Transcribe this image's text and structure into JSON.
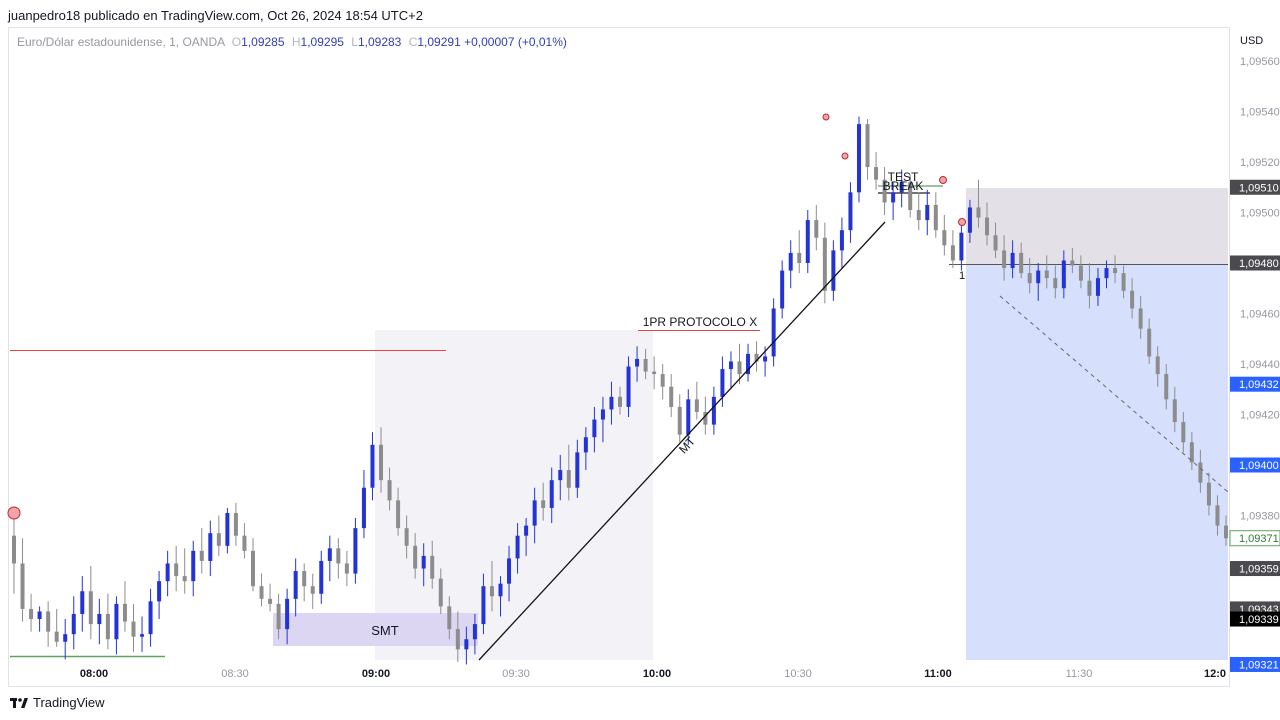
{
  "header": {
    "publisher_line": "juanpedro18 publicado en TradingView.com, Oct 26, 2024 18:54 UTC+2"
  },
  "legend": {
    "symbol": "Euro/Dólar estadounidense, 1, OANDA",
    "o_label": "O",
    "o_value": "1,09285",
    "h_label": "H",
    "h_value": "1,09295",
    "l_label": "L",
    "l_value": "1,09283",
    "c_label": "C",
    "c_value": "1,09291",
    "change": "+0,00007 (+0,01%)"
  },
  "axis": {
    "currency": "USD"
  },
  "footer": {
    "brand": "TradingView"
  },
  "colors": {
    "bull": "#2433d6",
    "bear": "#8c8c8c",
    "red_line": "#e04646",
    "green_line": "#5fa15f",
    "zone_gray": "#f3f3f7",
    "zone_purple": "#ddd6f3",
    "zone_blue": "#d6e0fc",
    "zone_dark": "#e3e1e7",
    "axis_text": "#9598a1"
  },
  "chart_data": {
    "type": "candlestick",
    "symbol": "EURUSD",
    "interval": "1",
    "ylim": [
      1.0932,
      1.0957
    ],
    "y_ticks": [
      "1,09560",
      "1,09540",
      "1,09520",
      "1,09500",
      "1,09460",
      "1,09440",
      "1,09420",
      "1,09380"
    ],
    "x_ticks": [
      "08:00",
      "08:30",
      "09:00",
      "09:30",
      "10:00",
      "10:30",
      "11:00",
      "11:30",
      "12:0"
    ],
    "x_ticks_bold": [
      "08:00",
      "09:00",
      "10:00",
      "11:00",
      "12:0"
    ],
    "price_labels": [
      {
        "text": "1,09510",
        "style": "dark"
      },
      {
        "text": "1,09480",
        "style": "dark"
      },
      {
        "text": "1,09432",
        "style": "blue"
      },
      {
        "text": "1,09400",
        "style": "blue"
      },
      {
        "text": "1,09371",
        "style": "green"
      },
      {
        "text": "1,09359",
        "style": "dark"
      },
      {
        "text": "1,09343",
        "style": "dark"
      },
      {
        "text": "1,09339",
        "style": "black"
      },
      {
        "text": "1,09321",
        "style": "blue"
      }
    ],
    "annotations": [
      {
        "text": "SMT"
      },
      {
        "text": "1PR PROTOCOLO X"
      },
      {
        "text": "MT"
      },
      {
        "text": "TEST"
      },
      {
        "text": "BREAK"
      },
      {
        "text": "1"
      }
    ],
    "candles": [
      [
        1.09372,
        1.09381,
        1.09349,
        1.09361
      ],
      [
        1.09361,
        1.09371,
        1.09338,
        1.09343
      ],
      [
        1.09343,
        1.09349,
        1.09334,
        1.09339
      ],
      [
        1.09339,
        1.09344,
        1.09334,
        1.09342
      ],
      [
        1.09342,
        1.09346,
        1.09328,
        1.09334
      ],
      [
        1.09334,
        1.09343,
        1.09328,
        1.0933
      ],
      [
        1.0933,
        1.09339,
        1.09323,
        1.09333
      ],
      [
        1.09333,
        1.09348,
        1.09327,
        1.09341
      ],
      [
        1.09341,
        1.09356,
        1.09334,
        1.0935
      ],
      [
        1.0935,
        1.0936,
        1.09331,
        1.09337
      ],
      [
        1.09337,
        1.09347,
        1.09329,
        1.09341
      ],
      [
        1.09341,
        1.09349,
        1.09327,
        1.09331
      ],
      [
        1.09331,
        1.09348,
        1.09325,
        1.09345
      ],
      [
        1.09345,
        1.09354,
        1.09334,
        1.09338
      ],
      [
        1.09338,
        1.09345,
        1.09326,
        1.09332
      ],
      [
        1.09332,
        1.0934,
        1.09326,
        1.09333
      ],
      [
        1.09333,
        1.09351,
        1.09328,
        1.09346
      ],
      [
        1.09346,
        1.09358,
        1.09339,
        1.09354
      ],
      [
        1.09354,
        1.09366,
        1.09348,
        1.09361
      ],
      [
        1.09361,
        1.09368,
        1.0935,
        1.09356
      ],
      [
        1.09356,
        1.09367,
        1.09349,
        1.09354
      ],
      [
        1.09354,
        1.0937,
        1.09348,
        1.09366
      ],
      [
        1.09366,
        1.09375,
        1.09357,
        1.09362
      ],
      [
        1.09362,
        1.09378,
        1.09356,
        1.09373
      ],
      [
        1.09373,
        1.0938,
        1.09364,
        1.09368
      ],
      [
        1.09368,
        1.09383,
        1.09365,
        1.09381
      ],
      [
        1.09381,
        1.09385,
        1.09368,
        1.09372
      ],
      [
        1.09372,
        1.09377,
        1.09363,
        1.09366
      ],
      [
        1.09366,
        1.09371,
        1.0935,
        1.09352
      ],
      [
        1.09352,
        1.09357,
        1.09344,
        1.09347
      ],
      [
        1.09347,
        1.09353,
        1.09342,
        1.09345
      ],
      [
        1.09345,
        1.09349,
        1.09331,
        1.09335
      ],
      [
        1.09335,
        1.09351,
        1.09329,
        1.09347
      ],
      [
        1.09347,
        1.09363,
        1.0934,
        1.09358
      ],
      [
        1.09358,
        1.09361,
        1.09346,
        1.09352
      ],
      [
        1.09352,
        1.09357,
        1.09343,
        1.09349
      ],
      [
        1.09349,
        1.09366,
        1.09345,
        1.09362
      ],
      [
        1.09362,
        1.09372,
        1.09354,
        1.09367
      ],
      [
        1.09367,
        1.09371,
        1.09355,
        1.09361
      ],
      [
        1.09361,
        1.09366,
        1.09352,
        1.09357
      ],
      [
        1.09357,
        1.09379,
        1.09353,
        1.09375
      ],
      [
        1.09375,
        1.09398,
        1.09371,
        1.09391
      ],
      [
        1.09391,
        1.09413,
        1.09386,
        1.09408
      ],
      [
        1.09408,
        1.09415,
        1.09389,
        1.09394
      ],
      [
        1.09394,
        1.09399,
        1.09382,
        1.09386
      ],
      [
        1.09386,
        1.09391,
        1.09372,
        1.09375
      ],
      [
        1.09375,
        1.0938,
        1.09363,
        1.09368
      ],
      [
        1.09368,
        1.09373,
        1.09355,
        1.09359
      ],
      [
        1.09359,
        1.09369,
        1.09352,
        1.09364
      ],
      [
        1.09364,
        1.0937,
        1.09351,
        1.09355
      ],
      [
        1.09355,
        1.09359,
        1.09341,
        1.09344
      ],
      [
        1.09344,
        1.09348,
        1.09331,
        1.09335
      ],
      [
        1.09335,
        1.09342,
        1.09322,
        1.09327
      ],
      [
        1.09327,
        1.09336,
        1.09321,
        1.09331
      ],
      [
        1.09331,
        1.09341,
        1.09325,
        1.09337
      ],
      [
        1.09337,
        1.09357,
        1.09333,
        1.09352
      ],
      [
        1.09352,
        1.09362,
        1.09342,
        1.09348
      ],
      [
        1.09348,
        1.09356,
        1.0934,
        1.09353
      ],
      [
        1.09353,
        1.09368,
        1.09346,
        1.09363
      ],
      [
        1.09363,
        1.09377,
        1.09357,
        1.09372
      ],
      [
        1.09372,
        1.09379,
        1.09364,
        1.09376
      ],
      [
        1.09376,
        1.09391,
        1.09369,
        1.09386
      ],
      [
        1.09386,
        1.09393,
        1.09378,
        1.09383
      ],
      [
        1.09383,
        1.09399,
        1.09377,
        1.09394
      ],
      [
        1.09394,
        1.09404,
        1.09386,
        1.09398
      ],
      [
        1.09398,
        1.09408,
        1.09386,
        1.09391
      ],
      [
        1.09391,
        1.0941,
        1.09387,
        1.09405
      ],
      [
        1.09405,
        1.09415,
        1.09398,
        1.09411
      ],
      [
        1.09411,
        1.09423,
        1.09405,
        1.09418
      ],
      [
        1.09418,
        1.09427,
        1.09409,
        1.09422
      ],
      [
        1.09422,
        1.09433,
        1.09416,
        1.09427
      ],
      [
        1.09427,
        1.09431,
        1.0942,
        1.09423
      ],
      [
        1.09423,
        1.09443,
        1.09419,
        1.09439
      ],
      [
        1.09439,
        1.09447,
        1.09433,
        1.09442
      ],
      [
        1.09442,
        1.09446,
        1.09434,
        1.09437
      ],
      [
        1.09437,
        1.09443,
        1.0943,
        1.09436
      ],
      [
        1.09436,
        1.0944,
        1.09426,
        1.09431
      ],
      [
        1.09431,
        1.09436,
        1.09419,
        1.09423
      ],
      [
        1.09423,
        1.09428,
        1.09409,
        1.09412
      ],
      [
        1.09412,
        1.0943,
        1.09408,
        1.09426
      ],
      [
        1.09426,
        1.09433,
        1.09418,
        1.09421
      ],
      [
        1.09421,
        1.09427,
        1.09412,
        1.09416
      ],
      [
        1.09416,
        1.09431,
        1.09412,
        1.09427
      ],
      [
        1.09427,
        1.09443,
        1.09423,
        1.09438
      ],
      [
        1.09438,
        1.09445,
        1.0943,
        1.09441
      ],
      [
        1.09441,
        1.09448,
        1.09432,
        1.09436
      ],
      [
        1.09436,
        1.09448,
        1.09433,
        1.09444
      ],
      [
        1.09444,
        1.09449,
        1.09437,
        1.09441
      ],
      [
        1.09441,
        1.09447,
        1.09435,
        1.09443
      ],
      [
        1.09443,
        1.09466,
        1.09439,
        1.09462
      ],
      [
        1.09462,
        1.09481,
        1.09458,
        1.09477
      ],
      [
        1.09477,
        1.09489,
        1.0947,
        1.09484
      ],
      [
        1.09484,
        1.09493,
        1.09476,
        1.0948
      ],
      [
        1.0948,
        1.09501,
        1.09476,
        1.09497
      ],
      [
        1.09497,
        1.09503,
        1.09485,
        1.0949
      ],
      [
        1.0949,
        1.09496,
        1.09464,
        1.09469
      ],
      [
        1.09469,
        1.09489,
        1.09465,
        1.09485
      ],
      [
        1.09485,
        1.09498,
        1.09478,
        1.09493
      ],
      [
        1.09493,
        1.09512,
        1.09488,
        1.09508
      ],
      [
        1.09508,
        1.09538,
        1.09504,
        1.09535
      ],
      [
        1.09535,
        1.09537,
        1.09513,
        1.09518
      ],
      [
        1.09518,
        1.09524,
        1.09509,
        1.09513
      ],
      [
        1.09513,
        1.09518,
        1.09499,
        1.09504
      ],
      [
        1.09504,
        1.09512,
        1.09497,
        1.09508
      ],
      [
        1.09508,
        1.09517,
        1.09502,
        1.09512
      ],
      [
        1.09512,
        1.09515,
        1.09498,
        1.09501
      ],
      [
        1.09501,
        1.09508,
        1.09493,
        1.09497
      ],
      [
        1.09497,
        1.09509,
        1.09491,
        1.09503
      ],
      [
        1.09503,
        1.09508,
        1.0949,
        1.09493
      ],
      [
        1.09493,
        1.09499,
        1.09483,
        1.09487
      ],
      [
        1.09487,
        1.09493,
        1.09478,
        1.09481
      ],
      [
        1.09481,
        1.09496,
        1.09477,
        1.09492
      ],
      [
        1.09492,
        1.09505,
        1.09488,
        1.09502
      ],
      [
        1.09502,
        1.09513,
        1.09494,
        1.09498
      ],
      [
        1.09498,
        1.09504,
        1.09487,
        1.09491
      ],
      [
        1.09491,
        1.09496,
        1.09482,
        1.09485
      ],
      [
        1.09485,
        1.09491,
        1.09473,
        1.09478
      ],
      [
        1.09478,
        1.09489,
        1.09474,
        1.09484
      ],
      [
        1.09484,
        1.09488,
        1.09474,
        1.09476
      ],
      [
        1.09476,
        1.09482,
        1.09468,
        1.09472
      ],
      [
        1.09472,
        1.0948,
        1.09465,
        1.09477
      ],
      [
        1.09477,
        1.09483,
        1.0947,
        1.09474
      ],
      [
        1.09474,
        1.09479,
        1.09466,
        1.0947
      ],
      [
        1.0947,
        1.09485,
        1.09466,
        1.09481
      ],
      [
        1.09481,
        1.09486,
        1.09476,
        1.09479
      ],
      [
        1.09479,
        1.09483,
        1.0947,
        1.09473
      ],
      [
        1.09473,
        1.0948,
        1.09462,
        1.09467
      ],
      [
        1.09467,
        1.09478,
        1.09463,
        1.09474
      ],
      [
        1.09474,
        1.09481,
        1.0947,
        1.09478
      ],
      [
        1.09478,
        1.09483,
        1.09472,
        1.09476
      ],
      [
        1.09476,
        1.09479,
        1.09466,
        1.09469
      ],
      [
        1.09469,
        1.09474,
        1.09458,
        1.09462
      ],
      [
        1.09462,
        1.09467,
        1.0945,
        1.09454
      ],
      [
        1.09454,
        1.09458,
        1.0944,
        1.09443
      ],
      [
        1.09443,
        1.09447,
        1.09431,
        1.09436
      ],
      [
        1.09436,
        1.0944,
        1.09422,
        1.09426
      ],
      [
        1.09426,
        1.09431,
        1.09413,
        1.09417
      ],
      [
        1.09417,
        1.09421,
        1.09405,
        1.09409
      ],
      [
        1.09409,
        1.09413,
        1.09398,
        1.09401
      ],
      [
        1.09401,
        1.09406,
        1.09389,
        1.09393
      ],
      [
        1.09393,
        1.09397,
        1.0938,
        1.09384
      ],
      [
        1.09384,
        1.09388,
        1.09372,
        1.09376
      ],
      [
        1.09376,
        1.0938,
        1.09368,
        1.09371
      ]
    ]
  }
}
